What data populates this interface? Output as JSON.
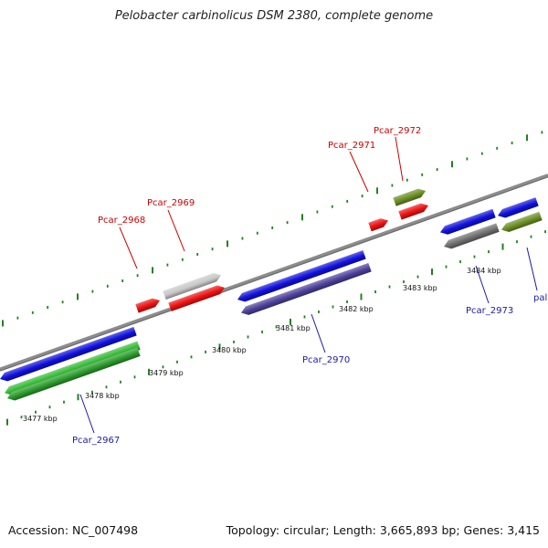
{
  "title": "Pelobacter carbinolicus DSM 2380, complete genome",
  "footer": {
    "accession": "Accession: NC_007498",
    "summary": "Topology: circular; Length: 3,665,893 bp; Genes: 3,415"
  },
  "colors": {
    "backbone": "#8c8c8c",
    "tick": "#238023",
    "forward_label": "#cc0000",
    "reverse_label": "#1a1aa8",
    "leader_forward": "#cc0000",
    "leader_reverse": "#1a1aa8"
  },
  "scale_labels": [
    "3477 kbp",
    "3478 kbp",
    "3479 kbp",
    "3480 kbp",
    "3481 kbp",
    "3482 kbp",
    "3483 kbp",
    "3484 kbp"
  ],
  "gene_labels": [
    {
      "text": "Pcar_2968",
      "strand": "forward"
    },
    {
      "text": "Pcar_2969",
      "strand": "forward"
    },
    {
      "text": "Pcar_2971",
      "strand": "forward"
    },
    {
      "text": "Pcar_2972",
      "strand": "forward"
    },
    {
      "text": "Pcar_2967",
      "strand": "reverse"
    },
    {
      "text": "Pcar_2970",
      "strand": "reverse"
    },
    {
      "text": "Pcar_2973",
      "strand": "reverse"
    },
    {
      "text": "pal",
      "strand": "reverse"
    }
  ],
  "features": [
    {
      "name": "Pcar_2968",
      "color": "#ee1111",
      "track": "forward"
    },
    {
      "name": "Pcar_2969",
      "color": "#c8c8c8",
      "track": "forward-outer"
    },
    {
      "name": "Pcar_2969-b",
      "color": "#ee1111",
      "track": "forward"
    },
    {
      "name": "Pcar_2971",
      "color": "#ee1111",
      "track": "forward"
    },
    {
      "name": "Pcar_2972",
      "color": "#6b8e23",
      "track": "forward-outer"
    },
    {
      "name": "Pcar_2972-b",
      "color": "#ee1111",
      "track": "forward"
    },
    {
      "name": "Pcar_2967",
      "color": "#1010dd",
      "track": "reverse"
    },
    {
      "name": "Pcar_2967-b",
      "color": "#33bb33",
      "track": "reverse-inner"
    },
    {
      "name": "Pcar_2967-c",
      "color": "#2a9a2a",
      "track": "reverse-inner"
    },
    {
      "name": "Pcar_2970",
      "color": "#1010dd",
      "track": "reverse"
    },
    {
      "name": "Pcar_2970-b",
      "color": "#4b3f9a",
      "track": "reverse-inner"
    },
    {
      "name": "Pcar_2973",
      "color": "#1010dd",
      "track": "reverse"
    },
    {
      "name": "Pcar_2973-b",
      "color": "#6e6e6e",
      "track": "reverse-inner"
    },
    {
      "name": "pal",
      "color": "#1010dd",
      "track": "reverse"
    },
    {
      "name": "pal-b",
      "color": "#6b8e23",
      "track": "reverse-inner"
    }
  ]
}
